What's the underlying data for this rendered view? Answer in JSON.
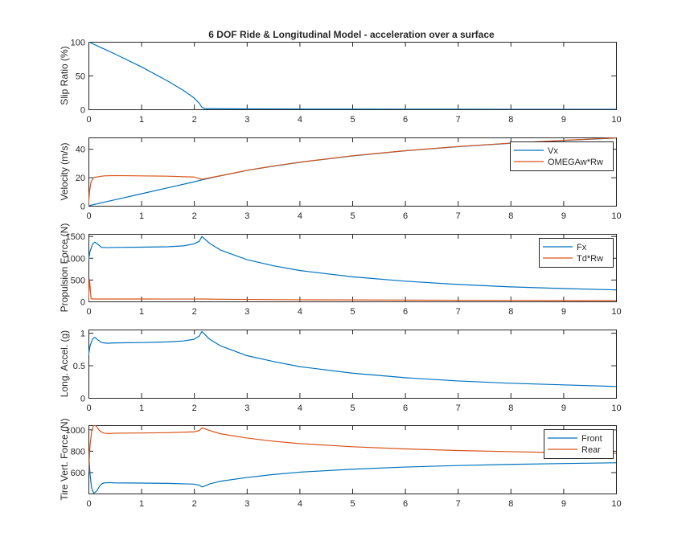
{
  "figure": {
    "title": "6 DOF Ride & Longitudinal Model - acceleration over a surface"
  },
  "colors": {
    "series1": "#0072BD",
    "series2": "#D95319",
    "axis": "#262626"
  },
  "chart_data": [
    {
      "type": "line",
      "title": "6 DOF Ride & Longitudinal Model - acceleration over a surface",
      "xlabel": "",
      "ylabel": "Slip Ratio (%)",
      "xlim": [
        0,
        10
      ],
      "ylim": [
        0,
        100
      ],
      "xticks": [
        0,
        1,
        2,
        3,
        4,
        5,
        6,
        7,
        8,
        9,
        10
      ],
      "yticks": [
        0,
        50,
        100
      ],
      "legend": null,
      "series": [
        {
          "color": "#0072BD",
          "x": [
            0,
            0.5,
            1.0,
            1.5,
            1.8,
            2.0,
            2.1,
            2.15,
            2.2,
            3,
            4,
            5,
            6,
            7,
            8,
            9,
            10
          ],
          "y": [
            100,
            82,
            63,
            42,
            28,
            17,
            9,
            3,
            1,
            0.6,
            0.4,
            0.3,
            0.2,
            0.2,
            0.1,
            0.1,
            0.1
          ]
        }
      ]
    },
    {
      "type": "line",
      "xlabel": "",
      "ylabel": "Velocity (m/s)",
      "xlim": [
        0,
        10
      ],
      "ylim": [
        0,
        48
      ],
      "xticks": [
        0,
        1,
        2,
        3,
        4,
        5,
        6,
        7,
        8,
        9,
        10
      ],
      "yticks": [
        0,
        20,
        40
      ],
      "legend": "top-right",
      "series": [
        {
          "name": "Vx",
          "color": "#0072BD",
          "x": [
            0,
            0.5,
            1.0,
            1.5,
            2.0,
            2.15,
            2.5,
            3,
            3.5,
            4,
            5,
            6,
            7,
            8,
            9,
            10
          ],
          "y": [
            0,
            4.2,
            8.4,
            12.6,
            16.8,
            18.2,
            21,
            24.8,
            27.8,
            30.5,
            35,
            38.6,
            41.5,
            43.9,
            45.9,
            47.6
          ]
        },
        {
          "name": "OMEGAw*Rw",
          "color": "#D95319",
          "x": [
            0,
            0.02,
            0.05,
            0.1,
            0.2,
            0.3,
            0.5,
            1.0,
            1.5,
            2.0,
            2.15,
            2.5,
            3,
            3.5,
            4,
            5,
            6,
            7,
            8,
            9,
            10
          ],
          "y": [
            0,
            10,
            17,
            19.8,
            20.5,
            21,
            21.2,
            21,
            20.8,
            20.2,
            18.6,
            21.1,
            24.9,
            27.9,
            30.6,
            35.1,
            38.7,
            41.6,
            44,
            46,
            47.7
          ]
        }
      ]
    },
    {
      "type": "line",
      "xlabel": "",
      "ylabel": "Propulsion Force (N)",
      "xlim": [
        0,
        10
      ],
      "ylim": [
        0,
        1550
      ],
      "xticks": [
        0,
        1,
        2,
        3,
        4,
        5,
        6,
        7,
        8,
        9,
        10
      ],
      "yticks": [
        0,
        500,
        1000,
        1500
      ],
      "legend": "top-right",
      "series": [
        {
          "name": "Fx",
          "color": "#0072BD",
          "x": [
            0,
            0.03,
            0.08,
            0.12,
            0.18,
            0.25,
            0.35,
            0.5,
            1.0,
            1.5,
            1.8,
            2.0,
            2.1,
            2.15,
            2.3,
            2.5,
            3,
            3.5,
            4,
            5,
            6,
            7,
            8,
            9,
            10
          ],
          "y": [
            950,
            1150,
            1320,
            1360,
            1310,
            1240,
            1235,
            1240,
            1245,
            1255,
            1275,
            1320,
            1380,
            1490,
            1330,
            1180,
            960,
            820,
            710,
            565,
            465,
            390,
            335,
            295,
            265
          ]
        },
        {
          "name": "Td*Rw",
          "color": "#D95319",
          "x": [
            0,
            0.02,
            0.05,
            0.1,
            0.5,
            1,
            1.5,
            2,
            2.15,
            2.5,
            3,
            4,
            5,
            6,
            7,
            8,
            9,
            10
          ],
          "y": [
            0,
            500,
            60,
            55,
            55,
            55,
            54,
            54,
            56,
            50,
            45,
            38,
            34,
            30,
            27,
            24,
            21,
            18
          ]
        }
      ]
    },
    {
      "type": "line",
      "xlabel": "",
      "ylabel": "Long. Accel. (g)",
      "xlim": [
        0,
        10
      ],
      "ylim": [
        0,
        1.05
      ],
      "xticks": [
        0,
        1,
        2,
        3,
        4,
        5,
        6,
        7,
        8,
        9,
        10
      ],
      "yticks": [
        0,
        0.5,
        1
      ],
      "legend": null,
      "series": [
        {
          "color": "#0072BD",
          "x": [
            0,
            0.03,
            0.08,
            0.12,
            0.18,
            0.25,
            0.35,
            0.5,
            1.0,
            1.5,
            1.8,
            2.0,
            2.1,
            2.15,
            2.3,
            2.5,
            3,
            3.5,
            4,
            5,
            6,
            7,
            8,
            9,
            10
          ],
          "y": [
            0.65,
            0.8,
            0.91,
            0.93,
            0.89,
            0.85,
            0.84,
            0.845,
            0.85,
            0.86,
            0.875,
            0.9,
            0.95,
            1.02,
            0.9,
            0.8,
            0.65,
            0.56,
            0.48,
            0.38,
            0.31,
            0.26,
            0.225,
            0.2,
            0.175
          ]
        }
      ]
    },
    {
      "type": "line",
      "xlabel": "",
      "ylabel": "Tire Vert. Force (N)",
      "xlim": [
        0,
        10
      ],
      "ylim": [
        400,
        1040
      ],
      "xticks": [
        0,
        1,
        2,
        3,
        4,
        5,
        6,
        7,
        8,
        9,
        10
      ],
      "yticks": [
        600,
        800,
        1000
      ],
      "legend": "top-right",
      "series": [
        {
          "name": "Front",
          "color": "#0072BD",
          "x": [
            0,
            0.03,
            0.06,
            0.1,
            0.15,
            0.2,
            0.25,
            0.3,
            0.4,
            0.5,
            1.0,
            1.5,
            2.0,
            2.1,
            2.15,
            2.2,
            2.3,
            2.5,
            3,
            3.5,
            4,
            5,
            6,
            7,
            8,
            9,
            10
          ],
          "y": [
            800,
            580,
            450,
            405,
            420,
            460,
            490,
            500,
            502,
            500,
            498,
            495,
            488,
            478,
            462,
            470,
            490,
            515,
            550,
            578,
            600,
            628,
            648,
            662,
            673,
            681,
            688
          ]
        },
        {
          "name": "Rear",
          "color": "#D95319",
          "x": [
            0,
            0.03,
            0.06,
            0.1,
            0.15,
            0.2,
            0.25,
            0.3,
            0.4,
            0.5,
            1.0,
            1.5,
            2.0,
            2.1,
            2.15,
            2.2,
            2.3,
            2.5,
            3,
            3.5,
            4,
            5,
            6,
            7,
            8,
            9,
            10
          ],
          "y": [
            600,
            850,
            980,
            1045,
            1030,
            995,
            975,
            965,
            962,
            965,
            967,
            970,
            978,
            990,
            1015,
            1008,
            990,
            960,
            920,
            890,
            868,
            838,
            818,
            803,
            792,
            783,
            776
          ]
        }
      ]
    }
  ]
}
